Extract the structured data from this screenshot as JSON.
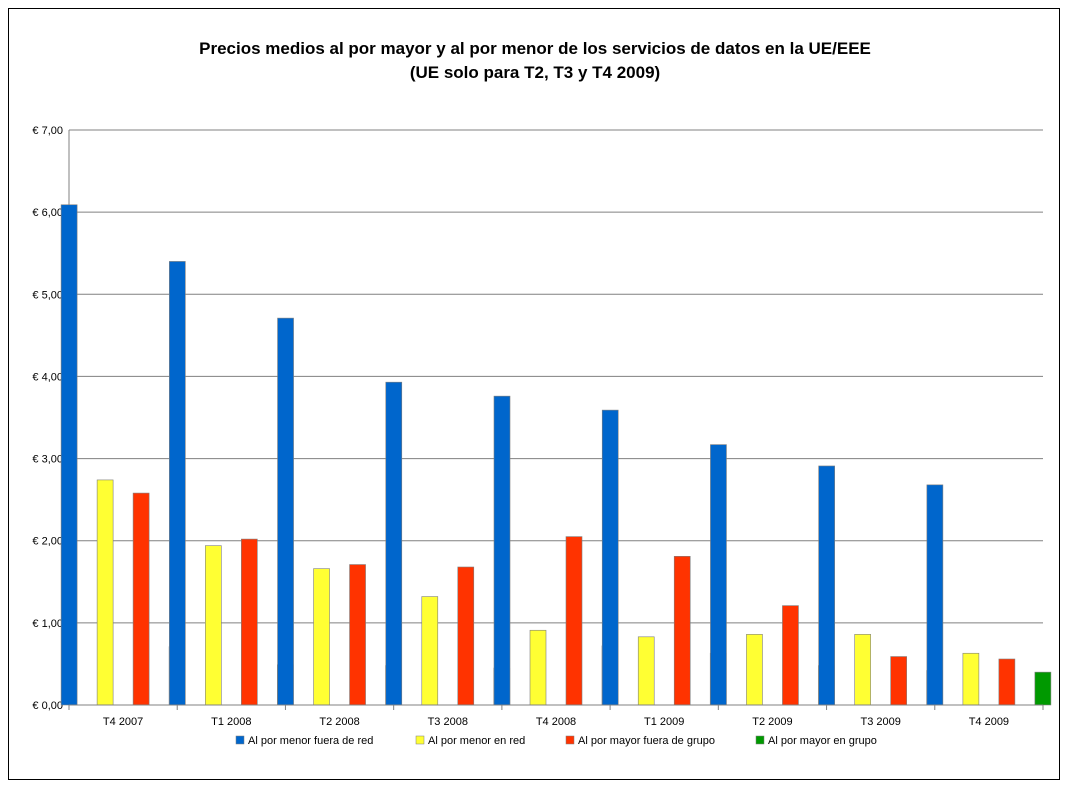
{
  "chart_data": {
    "type": "bar",
    "title": "Precios medios al por mayor y al por menor de los servicios de datos en la UE/EEE",
    "subtitle": "(UE solo para T2, T3 y T4 2009)",
    "xlabel": "",
    "ylabel": "",
    "ylim": [
      0,
      7
    ],
    "yticks": [
      "€ 0,00",
      "€ 1,00",
      "€ 2,00",
      "€ 3,00",
      "€ 4,00",
      "€ 5,00",
      "€ 6,00",
      "€ 7,00"
    ],
    "grid": true,
    "legend_position": "bottom",
    "categories": [
      "T4 2007",
      "T1 2008",
      "T2 2008",
      "T3 2008",
      "T4 2008",
      "T1 2009",
      "T2 2009",
      "T3 2009",
      "T4 2009"
    ],
    "series": [
      {
        "name": "Al por menor fuera de red",
        "color": "#0066CC",
        "values": [
          6.09,
          5.4,
          4.71,
          3.93,
          3.76,
          3.59,
          3.17,
          2.91,
          2.68
        ]
      },
      {
        "name": "Al por menor en red",
        "color": "#FFFF33",
        "values": [
          2.74,
          1.94,
          1.66,
          1.32,
          0.91,
          0.83,
          0.86,
          0.86,
          0.63
        ]
      },
      {
        "name": "Al por mayor fuera de grupo",
        "color": "#FF3300",
        "values": [
          2.58,
          2.02,
          1.71,
          1.68,
          2.05,
          1.81,
          1.21,
          0.59,
          0.56
        ]
      },
      {
        "name": "Al por mayor en grupo",
        "color": "#009900",
        "values": [
          0.71,
          0.49,
          0.48,
          0.45,
          0.72,
          0.63,
          0.48,
          0.42,
          0.4
        ]
      }
    ]
  }
}
